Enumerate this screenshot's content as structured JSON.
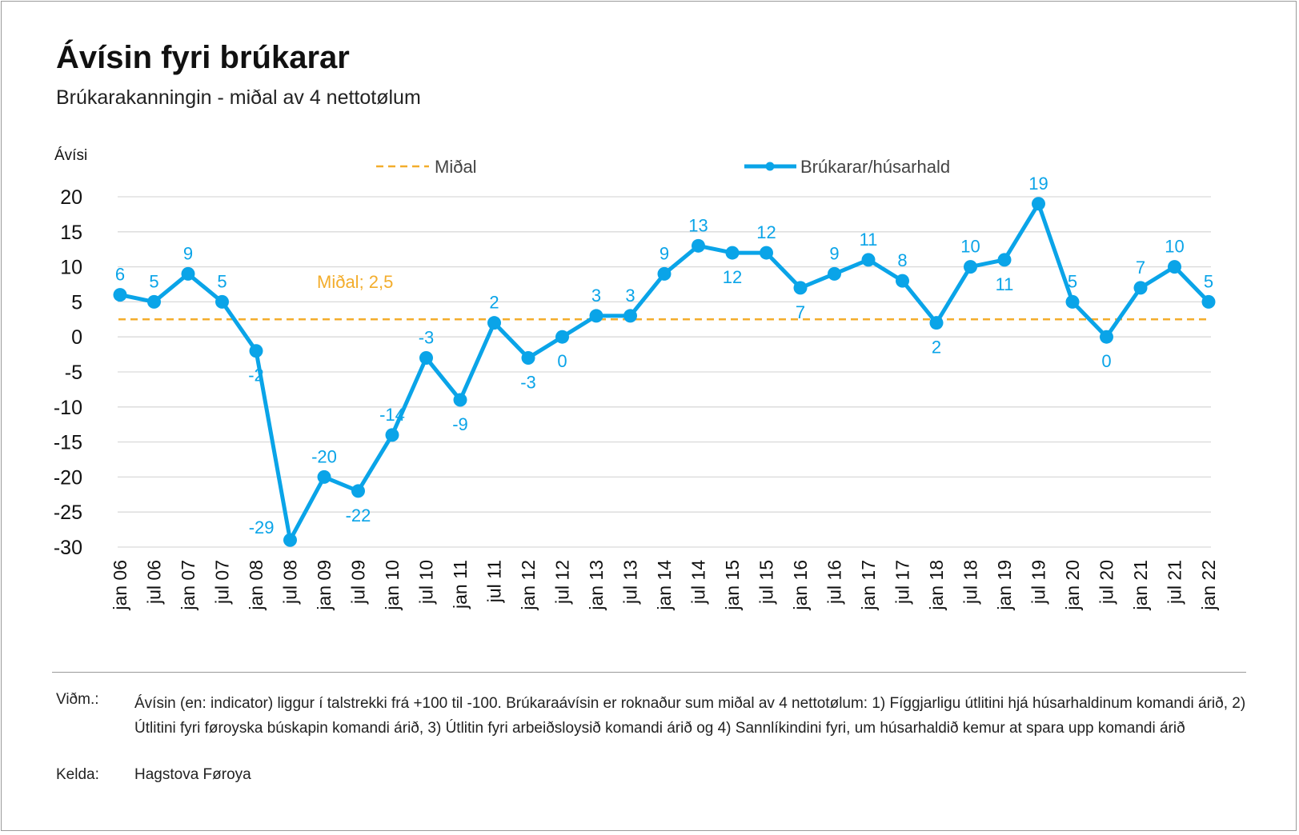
{
  "title": "Ávísin fyri brúkarar",
  "subtitle": "Brúkarakanningin - miðal av 4 nettotølum",
  "footer": {
    "note_label": "Viðm.:",
    "note_text": "Ávísin (en: indicator) liggur í talstrekki frá +100 til -100. Brúkaraávísin er roknaður sum miðal av 4 nettotølum: 1) Fíggjarligu útlitini hjá húsarhaldinum komandi árið, 2) Útlitini fyri føroyska búskapin komandi árið, 3) Útlitin fyri arbeiðsloysið komandi árið og 4) Sannlíkindini fyri, um húsarhaldið kemur at spara upp komandi árið",
    "source_label": "Kelda:",
    "source_text": "Hagstova Føroya"
  },
  "colors": {
    "line": "#0aa4e8",
    "mean": "#f3ad2c",
    "grid": "#d9d9d9",
    "axis_text": "#111111",
    "legend_text": "#444444"
  },
  "chart_data": {
    "type": "line",
    "ylabel": "Ávísi",
    "ylim": [
      -30,
      20
    ],
    "yticks": [
      20,
      15,
      10,
      5,
      0,
      -5,
      -10,
      -15,
      -20,
      -25,
      -30
    ],
    "grid": true,
    "legend_position": "top",
    "categories": [
      "jan 06",
      "jul 06",
      "jan 07",
      "jul 07",
      "jan 08",
      "jul 08",
      "jan 09",
      "jul 09",
      "jan 10",
      "jul 10",
      "jan 11",
      "jul 11",
      "jan 12",
      "jul 12",
      "jan 13",
      "jul 13",
      "jan 14",
      "jul 14",
      "jan 15",
      "jul 15",
      "jan 16",
      "jul 16",
      "jan 17",
      "jul 17",
      "jan 18",
      "jul 18",
      "jan 19",
      "jul 19",
      "jan 20",
      "jul 20",
      "jan 21",
      "jul 21",
      "jan 22"
    ],
    "series": [
      {
        "name": "Brúkarar/húsarhald",
        "values": [
          6,
          5,
          9,
          5,
          -2,
          -29,
          -20,
          -22,
          -14,
          -3,
          -9,
          2,
          -3,
          0,
          3,
          3,
          9,
          13,
          12,
          12,
          7,
          9,
          11,
          8,
          2,
          10,
          11,
          19,
          5,
          0,
          7,
          10,
          5
        ],
        "label_positions": [
          "above",
          "above",
          "above",
          "above",
          "below",
          "left",
          "above",
          "below",
          "above",
          "above",
          "below",
          "above",
          "below",
          "below",
          "above",
          "above",
          "above",
          "above",
          "below",
          "above",
          "below",
          "above",
          "above",
          "above",
          "below",
          "above",
          "below",
          "above",
          "above",
          "below",
          "above",
          "above",
          "above"
        ]
      },
      {
        "name": "Miðal",
        "value": 2.5,
        "style": "dashed",
        "annotation": "Miðal; 2,5"
      }
    ]
  }
}
